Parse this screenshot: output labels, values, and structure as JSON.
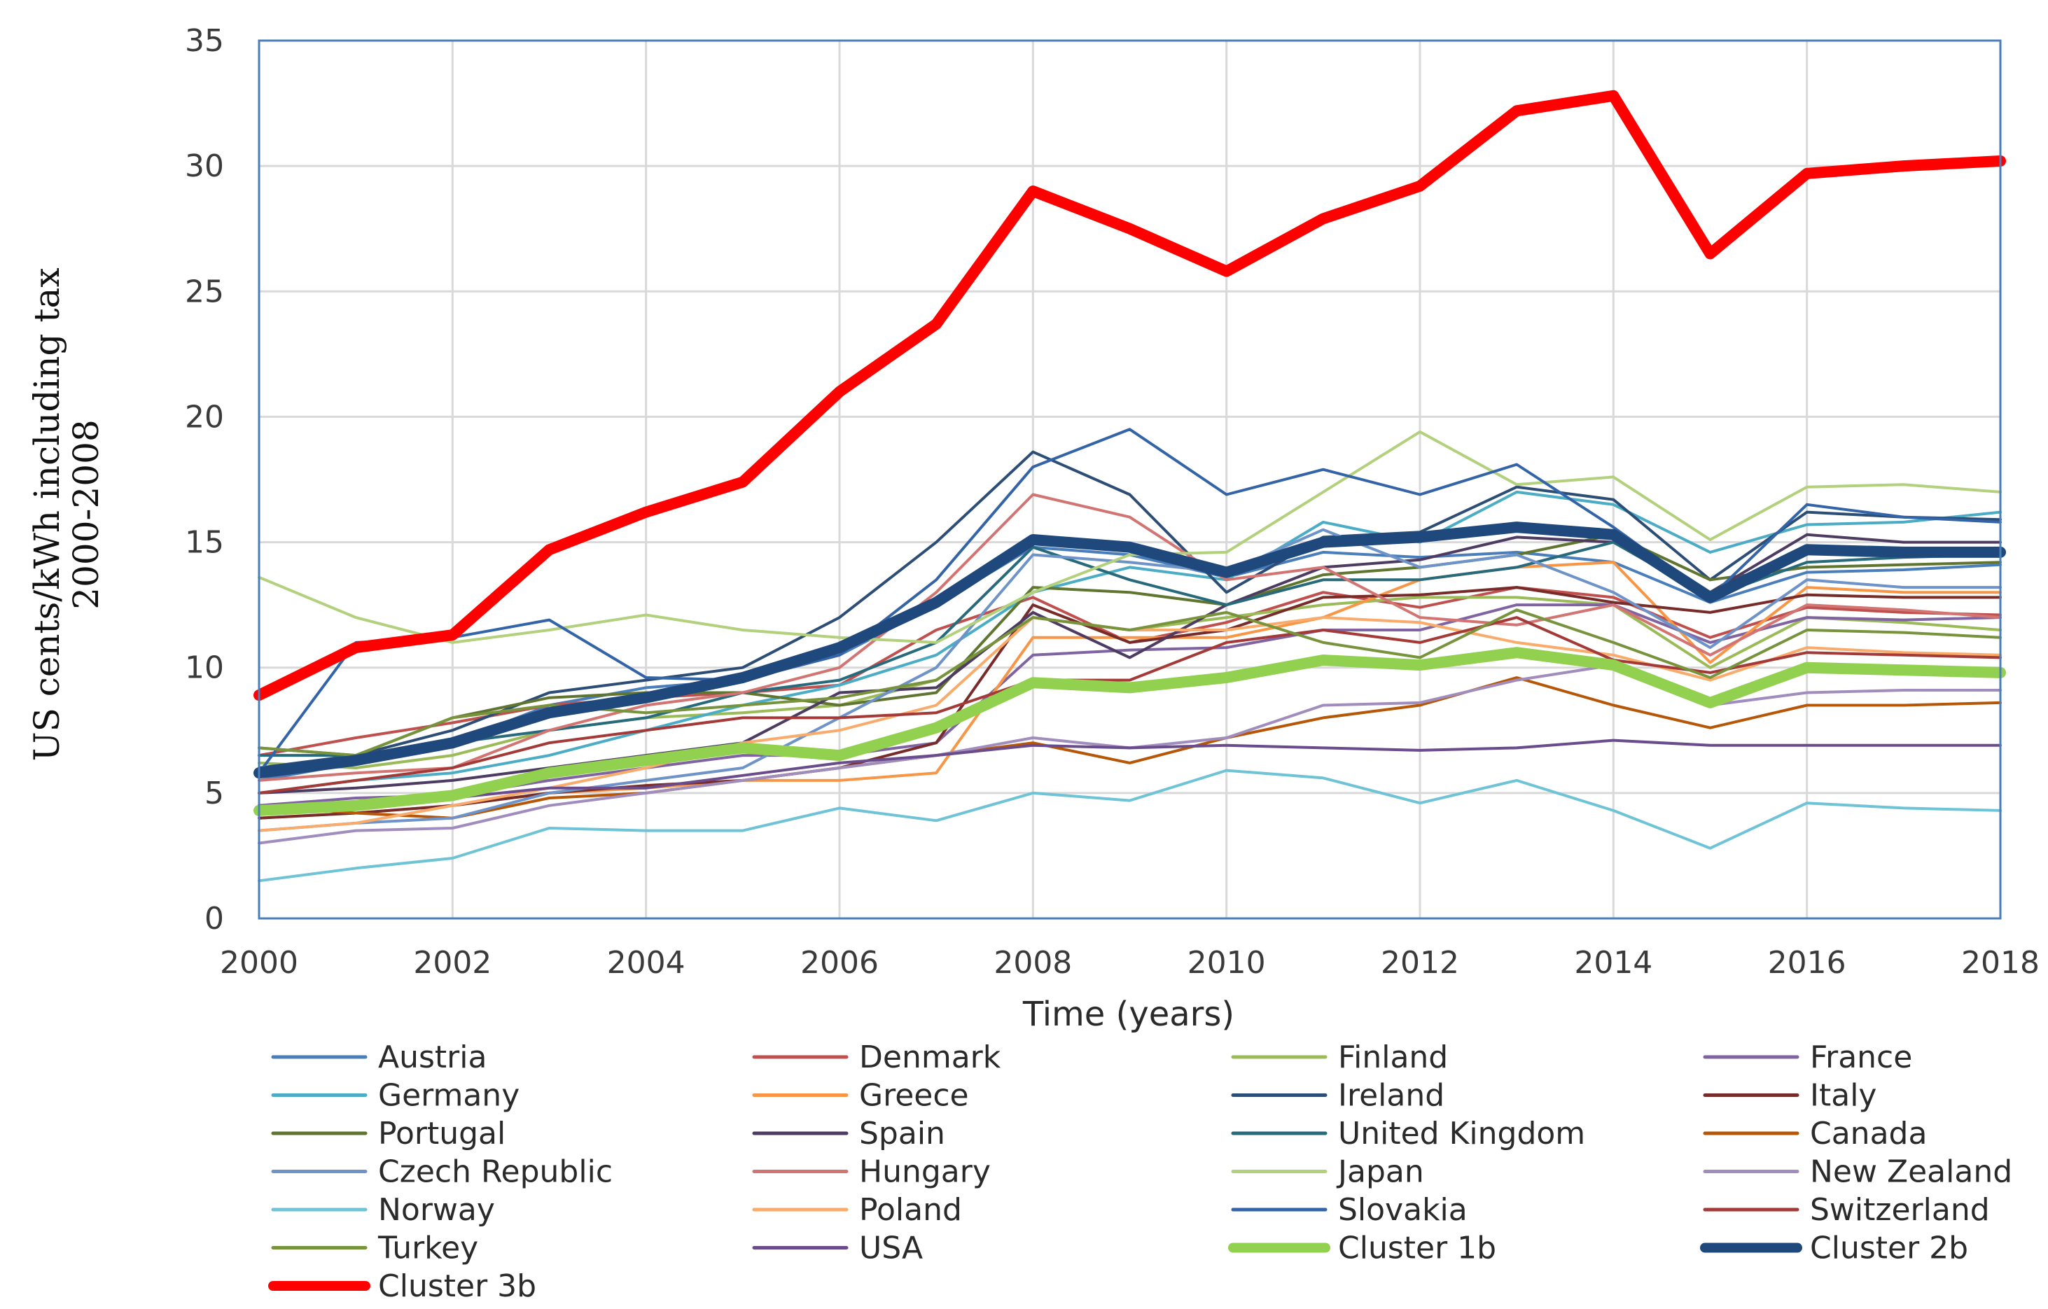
{
  "chart_data": {
    "type": "line",
    "title": "",
    "xlabel": "Time (years)",
    "ylabel": "US cents/kWh including tax",
    "ylabel_line2": "2000-2008",
    "x": [
      2000,
      2001,
      2002,
      2003,
      2004,
      2005,
      2006,
      2007,
      2008,
      2009,
      2010,
      2011,
      2012,
      2013,
      2014,
      2015,
      2016,
      2017,
      2018
    ],
    "xticks": [
      2000,
      2002,
      2004,
      2006,
      2008,
      2010,
      2012,
      2014,
      2016,
      2018
    ],
    "yticks": [
      0,
      5,
      10,
      15,
      20,
      25,
      30,
      35
    ],
    "xlim": [
      2000,
      2018
    ],
    "ylim": [
      0,
      35
    ],
    "grid": "vertical and horizontal",
    "legend_position": "bottom",
    "series": [
      {
        "name": "Austria",
        "color": "#4a7ebb",
        "width": 4,
        "values": [
          5.5,
          6.2,
          7.0,
          8.5,
          9.2,
          9.5,
          10.5,
          12.5,
          14.8,
          14.5,
          13.6,
          14.6,
          14.4,
          14.6,
          14.2,
          12.6,
          13.8,
          13.9,
          14.1
        ]
      },
      {
        "name": "Denmark",
        "color": "#c0504d",
        "width": 4,
        "values": [
          6.5,
          7.2,
          7.8,
          8.5,
          8.8,
          9.0,
          9.3,
          11.5,
          12.8,
          11.0,
          11.8,
          13.0,
          12.4,
          13.2,
          12.8,
          11.2,
          12.4,
          12.2,
          12.1
        ]
      },
      {
        "name": "Finland",
        "color": "#9bbb59",
        "width": 4,
        "values": [
          6.2,
          6.0,
          6.5,
          7.5,
          8.0,
          8.2,
          8.5,
          9.5,
          12.0,
          11.5,
          12.0,
          12.5,
          12.8,
          12.8,
          12.5,
          10.0,
          12.0,
          11.8,
          11.5
        ]
      },
      {
        "name": "France",
        "color": "#8064a2",
        "width": 4,
        "values": [
          4.5,
          4.8,
          4.9,
          5.5,
          6.0,
          6.5,
          6.5,
          7.0,
          10.5,
          10.7,
          10.8,
          11.5,
          11.5,
          12.5,
          12.5,
          11.0,
          12.0,
          11.9,
          12.0
        ]
      },
      {
        "name": "Germany",
        "color": "#4bacc6",
        "width": 4,
        "values": [
          5.0,
          5.5,
          5.8,
          6.5,
          7.5,
          8.5,
          9.3,
          10.5,
          13.0,
          14.0,
          13.5,
          15.8,
          15.0,
          17.0,
          16.5,
          14.6,
          15.7,
          15.8,
          16.2
        ]
      },
      {
        "name": "Greece",
        "color": "#f79646",
        "width": 4,
        "values": [
          4.0,
          4.2,
          4.5,
          5.0,
          5.2,
          5.5,
          5.5,
          5.8,
          11.2,
          11.2,
          11.2,
          12.0,
          13.5,
          14.0,
          14.2,
          10.2,
          13.2,
          13.0,
          13.0
        ]
      },
      {
        "name": "Ireland",
        "color": "#2c4d75",
        "width": 4,
        "values": [
          6.0,
          6.5,
          7.5,
          9.0,
          9.5,
          10.0,
          12.0,
          15.0,
          18.6,
          16.9,
          13.0,
          15.2,
          15.4,
          17.2,
          16.7,
          13.5,
          16.2,
          16.0,
          15.9
        ]
      },
      {
        "name": "Italy",
        "color": "#772c2a",
        "width": 4,
        "values": [
          4.0,
          4.2,
          4.5,
          5.0,
          5.3,
          5.5,
          6.0,
          7.0,
          12.5,
          11.0,
          11.5,
          12.8,
          12.9,
          13.2,
          12.6,
          12.2,
          12.9,
          12.8,
          12.8
        ]
      },
      {
        "name": "Portugal",
        "color": "#5f7530",
        "width": 4,
        "values": [
          6.8,
          6.5,
          8.0,
          8.8,
          9.0,
          9.0,
          8.5,
          9.0,
          13.2,
          13.0,
          12.5,
          13.7,
          14.0,
          14.5,
          15.3,
          13.5,
          14.0,
          14.1,
          14.2
        ]
      },
      {
        "name": "Spain",
        "color": "#4d3b62",
        "width": 4,
        "values": [
          5.0,
          5.2,
          5.5,
          6.0,
          6.5,
          7.0,
          9.0,
          9.2,
          12.2,
          10.4,
          12.5,
          14.0,
          14.3,
          15.2,
          15.0,
          13.0,
          15.3,
          15.0,
          15.0
        ]
      },
      {
        "name": "United Kingdom",
        "color": "#276a7c",
        "width": 4,
        "values": [
          6.5,
          6.5,
          7.0,
          7.5,
          8.0,
          9.0,
          9.5,
          11.0,
          14.8,
          13.5,
          12.5,
          13.5,
          13.5,
          14.0,
          15.0,
          12.8,
          14.2,
          14.4,
          14.5
        ]
      },
      {
        "name": "Canada",
        "color": "#b65708",
        "width": 4,
        "values": [
          4.5,
          4.2,
          4.0,
          4.8,
          5.0,
          5.5,
          6.0,
          6.5,
          7.0,
          6.2,
          7.2,
          8.0,
          8.5,
          9.6,
          8.5,
          7.6,
          8.5,
          8.5,
          8.6
        ]
      },
      {
        "name": "Czech Republic",
        "color": "#6d93c8",
        "width": 4,
        "values": [
          3.5,
          3.8,
          4.0,
          5.0,
          5.5,
          6.0,
          8.0,
          10.0,
          14.5,
          14.2,
          13.8,
          15.5,
          14.0,
          14.5,
          13.0,
          10.8,
          13.5,
          13.2,
          13.2
        ]
      },
      {
        "name": "Hungary",
        "color": "#d27472",
        "width": 4,
        "values": [
          5.5,
          5.8,
          6.0,
          7.5,
          8.5,
          9.0,
          10.0,
          13.0,
          16.9,
          16.0,
          13.5,
          14.0,
          12.0,
          11.7,
          12.5,
          10.5,
          12.5,
          12.3,
          12.0
        ]
      },
      {
        "name": "Japan",
        "color": "#b3d07d",
        "width": 4,
        "values": [
          13.6,
          12.0,
          11.0,
          11.5,
          12.1,
          11.5,
          11.2,
          11.0,
          13.0,
          14.5,
          14.6,
          17.0,
          19.4,
          17.3,
          17.6,
          15.1,
          17.2,
          17.3,
          17.0
        ]
      },
      {
        "name": "New Zealand",
        "color": "#a18dbd",
        "width": 4,
        "values": [
          3.0,
          3.5,
          3.6,
          4.5,
          5.0,
          5.5,
          6.0,
          6.5,
          7.2,
          6.8,
          7.2,
          8.5,
          8.6,
          9.5,
          10.1,
          8.5,
          9.0,
          9.1,
          9.1
        ]
      },
      {
        "name": "Norway",
        "color": "#6ec3d6",
        "width": 4,
        "values": [
          1.5,
          2.0,
          2.4,
          3.6,
          3.5,
          3.5,
          4.4,
          3.9,
          5.0,
          4.7,
          5.9,
          5.6,
          4.6,
          5.5,
          4.3,
          2.8,
          4.6,
          4.4,
          4.3
        ]
      },
      {
        "name": "Poland",
        "color": "#f9ab6b",
        "width": 4,
        "values": [
          3.5,
          3.8,
          4.5,
          5.2,
          6.0,
          7.0,
          7.5,
          8.5,
          12.0,
          11.5,
          11.5,
          12.0,
          11.8,
          11.0,
          10.5,
          9.5,
          10.8,
          10.6,
          10.5
        ]
      },
      {
        "name": "Slovakia",
        "color": "#3464a8",
        "width": 4,
        "values": [
          5.8,
          11.0,
          11.2,
          11.9,
          9.6,
          9.5,
          10.5,
          13.5,
          18.0,
          19.5,
          16.9,
          17.9,
          16.9,
          18.1,
          15.6,
          12.8,
          16.5,
          16.0,
          15.8
        ]
      },
      {
        "name": "Switzerland",
        "color": "#a33a37",
        "width": 4,
        "values": [
          5.0,
          5.5,
          6.0,
          7.0,
          7.5,
          8.0,
          8.0,
          8.2,
          9.5,
          9.5,
          11.0,
          11.5,
          11.0,
          12.0,
          10.3,
          9.8,
          10.6,
          10.5,
          10.4
        ]
      },
      {
        "name": "Turkey",
        "color": "#77933c",
        "width": 4,
        "values": [
          6.8,
          6.5,
          8.0,
          8.5,
          8.2,
          8.5,
          8.8,
          9.5,
          12.0,
          11.5,
          12.2,
          11.0,
          10.4,
          12.3,
          11.0,
          9.6,
          11.5,
          11.4,
          11.2
        ]
      },
      {
        "name": "USA",
        "color": "#6a4c8c",
        "width": 4,
        "values": [
          4.5,
          4.6,
          4.8,
          5.2,
          5.2,
          5.7,
          6.2,
          6.5,
          6.9,
          6.8,
          6.9,
          6.8,
          6.7,
          6.8,
          7.1,
          6.9,
          6.9,
          6.9,
          6.9
        ]
      },
      {
        "name": "Cluster 1b",
        "color": "#92d050",
        "width": 16,
        "values": [
          4.3,
          4.5,
          4.9,
          5.8,
          6.3,
          6.8,
          6.5,
          7.6,
          9.4,
          9.2,
          9.6,
          10.3,
          10.1,
          10.6,
          10.1,
          8.6,
          10.0,
          9.9,
          9.8
        ]
      },
      {
        "name": "Cluster 2b",
        "color": "#1f497d",
        "width": 16,
        "values": [
          5.8,
          6.3,
          7.0,
          8.2,
          8.8,
          9.6,
          10.8,
          12.6,
          15.1,
          14.8,
          13.8,
          15.0,
          15.2,
          15.6,
          15.3,
          12.8,
          14.7,
          14.6,
          14.6
        ]
      },
      {
        "name": "Cluster 3b",
        "color": "#ff0000",
        "width": 16,
        "values": [
          8.9,
          10.8,
          11.3,
          14.7,
          16.2,
          17.4,
          21.0,
          23.7,
          29.0,
          27.5,
          25.8,
          27.9,
          29.2,
          32.2,
          32.8,
          26.5,
          29.7,
          30.0,
          30.2
        ]
      }
    ]
  }
}
